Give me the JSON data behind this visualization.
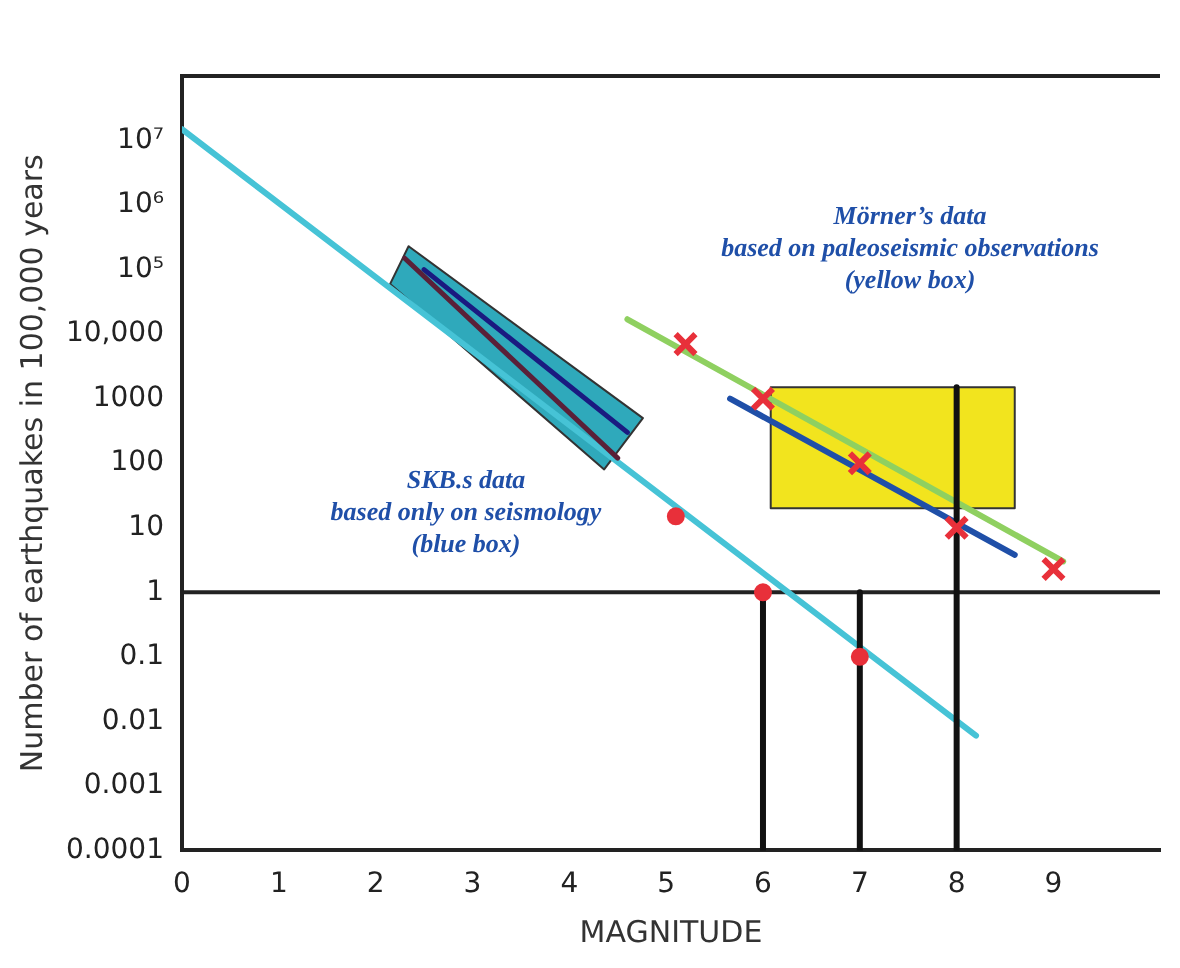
{
  "chart_data": {
    "type": "line",
    "xlabel": "MAGNITUDE",
    "ylabel": "Number of earthquakes in 100,000 years",
    "log": "y",
    "grid": false,
    "legend": false,
    "xlim": [
      0,
      10.1
    ],
    "xticks": [
      0,
      1,
      2,
      3,
      4,
      5,
      6,
      7,
      8,
      9
    ],
    "ylim": [
      0.0001,
      100000000
    ],
    "yticks": [
      0.0001,
      0.001,
      0.01,
      0.1,
      1,
      10,
      100,
      1000,
      {
        "value": 10000,
        "label": "10,000"
      },
      {
        "value": 100000,
        "label": "10⁵"
      },
      {
        "value": 1000000,
        "label": "10⁶"
      },
      {
        "value": 10000000,
        "label": "10⁷"
      }
    ],
    "ref_lines": [
      {
        "axis": "y",
        "value": 1,
        "color": "#222222"
      }
    ],
    "annotations": [
      "SKB.s data\nbased only on seismology\n(blue box)",
      "Mörner’s data\nbased on paleoseismic observations\n(yellow box)"
    ],
    "series": [
      {
        "type": "area",
        "color": "#2fa9bb",
        "x": [
          2.34,
          4.76,
          4.36,
          2.15,
          2.34
        ],
        "values": [
          230000,
          500,
          80,
          60000,
          230000
        ]
      },
      {
        "type": "area",
        "color": "#f2e41e",
        "x": [
          6.08,
          8.6,
          8.6,
          6.08,
          6.08
        ],
        "values": [
          1500,
          1500,
          20,
          20,
          1500
        ]
      },
      {
        "color": "#46c3d6",
        "marker": "none",
        "x": [
          0,
          8.2
        ],
        "values": [
          15000000,
          0.006
        ]
      },
      {
        "color": "#1a1a80",
        "marker": "none",
        "x": [
          2.5,
          4.6
        ],
        "values": [
          100000,
          300
        ]
      },
      {
        "color": "#5a2038",
        "marker": "none",
        "x": [
          2.3,
          4.5
        ],
        "values": [
          150000,
          120
        ]
      },
      {
        "color": "#8fd060",
        "marker": "none",
        "x": [
          4.6,
          9.1
        ],
        "values": [
          17000,
          3
        ]
      },
      {
        "color": "#1f4fa8",
        "marker": "none",
        "x": [
          5.66,
          8.6
        ],
        "values": [
          1000,
          3.8
        ]
      },
      {
        "color": "#111111",
        "marker": "none",
        "x": [
          6,
          6
        ],
        "values": [
          0.0001,
          1
        ]
      },
      {
        "color": "#111111",
        "marker": "none",
        "x": [
          7,
          7
        ],
        "values": [
          0.0001,
          1
        ]
      },
      {
        "color": "#111111",
        "marker": "none",
        "x": [
          8,
          8
        ],
        "values": [
          0.0001,
          1500
        ]
      },
      {
        "type": "scatter",
        "color": "#e8303a",
        "marker": "cross",
        "x": [
          5.2,
          6,
          7,
          8,
          9
        ],
        "values": [
          7000,
          1000,
          100,
          10,
          2.3
        ]
      },
      {
        "type": "scatter",
        "color": "#e8303a",
        "marker": "circle",
        "x": [
          5.1,
          6,
          7
        ],
        "values": [
          15,
          1,
          0.1
        ]
      }
    ]
  }
}
